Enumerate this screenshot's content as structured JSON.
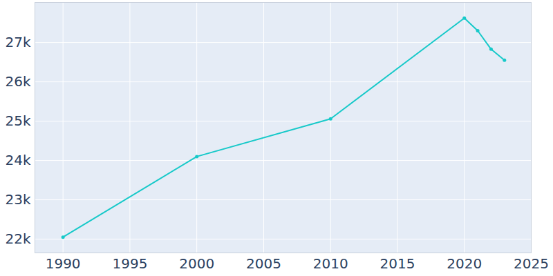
{
  "chart_data": {
    "type": "line",
    "x": [
      1990,
      2000,
      2010,
      2020,
      2021,
      2022,
      2023
    ],
    "values": [
      22050,
      24100,
      25060,
      27620,
      27300,
      26830,
      26550
    ],
    "color": "#17c9c9",
    "marker": "circle",
    "xlim": [
      1987.9,
      2025
    ],
    "xticks": [
      1990,
      1995,
      2000,
      2005,
      2010,
      2015,
      2020,
      2025
    ],
    "ylim": [
      21650,
      28020
    ],
    "yticks": [
      {
        "value": 22000,
        "label": "22k"
      },
      {
        "value": 23000,
        "label": "23k"
      },
      {
        "value": 24000,
        "label": "24k"
      },
      {
        "value": 25000,
        "label": "25k"
      },
      {
        "value": 26000,
        "label": "26k"
      },
      {
        "value": 27000,
        "label": "27k"
      }
    ],
    "grid": true
  }
}
